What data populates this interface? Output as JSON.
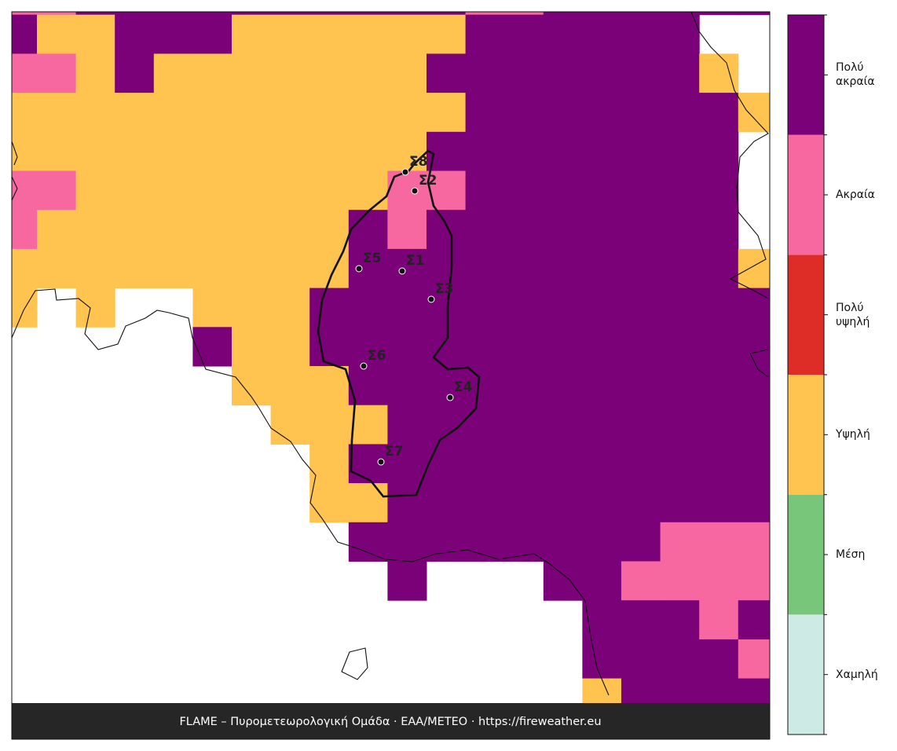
{
  "map": {
    "levels": [
      {
        "label": "Χαμηλή",
        "color": "#cdebe4"
      },
      {
        "label": "Μέση",
        "color": "#78c679"
      },
      {
        "label": "Υψηλή",
        "color": "#fec44f"
      },
      {
        "label": "Πολύ υψηλή",
        "color": "#de2d26"
      },
      {
        "label": "Ακραία",
        "color": "#f768a1"
      },
      {
        "label": "Πολύ ακραία",
        "color": "#7a0177"
      }
    ],
    "grid": {
      "rows": [
        [
          4,
          4,
          5,
          5,
          5,
          5,
          5,
          5,
          5,
          5,
          5,
          5,
          4,
          4,
          5,
          5,
          5,
          5,
          5,
          5
        ],
        [
          5,
          2,
          2,
          5,
          5,
          5,
          2,
          2,
          2,
          2,
          2,
          2,
          5,
          5,
          5,
          5,
          5,
          5,
          null,
          null
        ],
        [
          4,
          4,
          2,
          5,
          2,
          2,
          2,
          2,
          2,
          2,
          2,
          5,
          5,
          5,
          5,
          5,
          5,
          5,
          2,
          null
        ],
        [
          2,
          2,
          2,
          2,
          2,
          2,
          2,
          2,
          2,
          2,
          2,
          2,
          5,
          5,
          5,
          5,
          5,
          5,
          5,
          2
        ],
        [
          2,
          2,
          2,
          2,
          2,
          2,
          2,
          2,
          2,
          2,
          2,
          5,
          5,
          5,
          5,
          5,
          5,
          5,
          5,
          null
        ],
        [
          4,
          4,
          2,
          2,
          2,
          2,
          2,
          2,
          2,
          2,
          4,
          4,
          5,
          5,
          5,
          5,
          5,
          5,
          5,
          null
        ],
        [
          4,
          2,
          2,
          2,
          2,
          2,
          2,
          2,
          2,
          5,
          4,
          5,
          5,
          5,
          5,
          5,
          5,
          5,
          5,
          null
        ],
        [
          2,
          2,
          2,
          2,
          2,
          2,
          2,
          2,
          2,
          5,
          5,
          5,
          5,
          5,
          5,
          5,
          5,
          5,
          5,
          2
        ],
        [
          2,
          null,
          2,
          null,
          null,
          2,
          2,
          2,
          5,
          5,
          5,
          5,
          5,
          5,
          5,
          5,
          5,
          5,
          5,
          5
        ],
        [
          null,
          null,
          null,
          null,
          null,
          5,
          2,
          2,
          5,
          5,
          5,
          5,
          5,
          5,
          5,
          5,
          5,
          5,
          5,
          5
        ],
        [
          null,
          null,
          null,
          null,
          null,
          null,
          2,
          2,
          2,
          5,
          5,
          5,
          5,
          5,
          5,
          5,
          5,
          5,
          5,
          5
        ],
        [
          null,
          null,
          null,
          null,
          null,
          null,
          null,
          2,
          2,
          2,
          5,
          5,
          5,
          5,
          5,
          5,
          5,
          5,
          5,
          5
        ],
        [
          null,
          null,
          null,
          null,
          null,
          null,
          null,
          null,
          2,
          5,
          5,
          5,
          5,
          5,
          5,
          5,
          5,
          5,
          5,
          5
        ],
        [
          null,
          null,
          null,
          null,
          null,
          null,
          null,
          null,
          2,
          2,
          5,
          5,
          5,
          5,
          5,
          5,
          5,
          5,
          5,
          5
        ],
        [
          null,
          null,
          null,
          null,
          null,
          null,
          null,
          null,
          null,
          5,
          5,
          5,
          5,
          5,
          5,
          5,
          5,
          4,
          4,
          4
        ],
        [
          null,
          null,
          null,
          null,
          null,
          null,
          null,
          null,
          null,
          null,
          5,
          null,
          null,
          null,
          5,
          5,
          4,
          4,
          4,
          4
        ],
        [
          null,
          null,
          null,
          null,
          null,
          null,
          null,
          null,
          null,
          null,
          null,
          null,
          null,
          null,
          null,
          5,
          5,
          5,
          4,
          5
        ],
        [
          null,
          null,
          null,
          null,
          null,
          null,
          null,
          null,
          null,
          null,
          null,
          null,
          null,
          null,
          null,
          5,
          5,
          5,
          5,
          4
        ],
        [
          null,
          null,
          null,
          null,
          null,
          null,
          null,
          null,
          null,
          null,
          null,
          null,
          null,
          null,
          null,
          2,
          5,
          5,
          5,
          5
        ]
      ]
    },
    "stations": [
      "Σ1",
      "Σ2",
      "Σ3",
      "Σ4",
      "Σ5",
      "Σ6",
      "Σ7",
      "Σ8"
    ],
    "footer": "FLAME – Πυρομετεωρολογική Ομάδα · ΕΑΑ/METEO · https://fireweather.eu"
  }
}
